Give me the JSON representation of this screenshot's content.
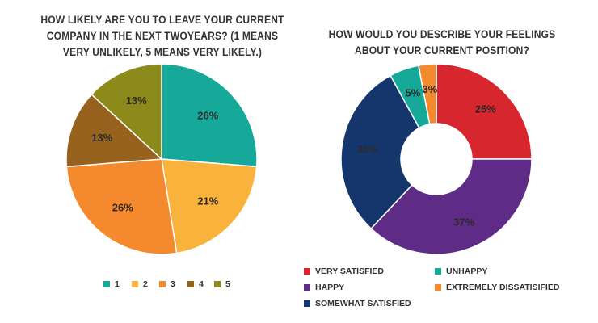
{
  "chart_data": [
    {
      "type": "pie",
      "title": "HOW LIKELY ARE YOU TO LEAVE YOUR CURRENT COMPANY IN THE NEXT TWOYEARS? (1 MEANS VERY UNLIKELY, 5 MEANS VERY LIKELY.)",
      "title_lines": [
        "HOW LIKELY ARE YOU TO LEAVE YOUR CURRENT",
        "COMPANY IN THE NEXT TWOYEARS? (1 MEANS",
        "VERY UNLIKELY, 5 MEANS VERY LIKELY.)"
      ],
      "categories": [
        "1",
        "2",
        "3",
        "4",
        "5"
      ],
      "values": [
        26,
        21,
        26,
        13,
        13
      ],
      "labels": [
        "26%",
        "21%",
        "26%",
        "13%",
        "13%"
      ],
      "colors": [
        "#16a99a",
        "#f9b23b",
        "#f5892d",
        "#97621d",
        "#8d8a1c"
      ],
      "legend_position": "bottom",
      "start": "top, clockwise"
    },
    {
      "type": "pie",
      "variant": "donut",
      "title": "HOW WOULD YOU DESCRIBE YOUR FEELINGS ABOUT YOUR CURRENT POSITION?",
      "title_lines": [
        "HOW WOULD YOU DESCRIBE YOUR FEELINGS",
        "ABOUT YOUR CURRENT POSITION?"
      ],
      "categories": [
        "VERY SATISFIED",
        "HAPPY",
        "SOMEWHAT SATISFIED",
        "UNHAPPY",
        "EXTREMELY DISSATISIFIED"
      ],
      "values": [
        25,
        37,
        30,
        5,
        3
      ],
      "labels": [
        "25%",
        "37%",
        "30%",
        "5%",
        "3%"
      ],
      "colors": [
        "#d7262d",
        "#5e2b86",
        "#15366c",
        "#16a99a",
        "#f5892d"
      ],
      "legend_position": "bottom",
      "start": "top, clockwise"
    }
  ]
}
